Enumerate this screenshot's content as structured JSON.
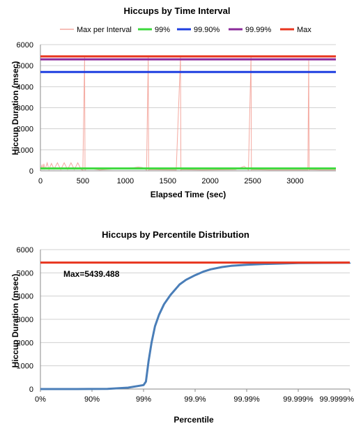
{
  "chart_data": [
    {
      "type": "line",
      "title": "Hiccups by Time Interval",
      "xlabel": "Elapsed Time (sec)",
      "ylabel": "Hiccup Duration (msec)",
      "xlim": [
        0,
        3480
      ],
      "ylim": [
        0,
        6000
      ],
      "xticks": [
        0,
        500,
        1000,
        1500,
        2000,
        2500,
        3000
      ],
      "yticks": [
        0,
        1000,
        2000,
        3000,
        4000,
        5000,
        6000
      ],
      "grid": "horizontal",
      "legend_position": "top",
      "legend": [
        "Max per Interval",
        "99%",
        "99.90%",
        "99.99%",
        "Max"
      ],
      "series": [
        {
          "name": "Max per Interval",
          "color": "#f4a9a0",
          "x": [
            0,
            20,
            30,
            40,
            50,
            60,
            80,
            100,
            130,
            160,
            200,
            240,
            280,
            320,
            360,
            400,
            440,
            480,
            500,
            520,
            525,
            530,
            560,
            700,
            1100,
            1150,
            1200,
            1250,
            1270,
            1275,
            1280,
            1400,
            1600,
            1650,
            1655,
            1660,
            1900,
            2300,
            2400,
            2450,
            2480,
            2485,
            2490,
            2700,
            3000,
            3150,
            3160,
            3165,
            3170,
            3300,
            3480
          ],
          "y": [
            50,
            280,
            60,
            330,
            80,
            130,
            380,
            60,
            350,
            80,
            380,
            60,
            380,
            60,
            380,
            60,
            380,
            60,
            40,
            5400,
            40,
            60,
            120,
            40,
            150,
            180,
            160,
            40,
            5400,
            40,
            60,
            50,
            40,
            5400,
            40,
            60,
            40,
            60,
            220,
            40,
            5400,
            40,
            60,
            40,
            40,
            40,
            5250,
            40,
            60,
            40,
            40
          ]
        },
        {
          "name": "99%",
          "color": "#3dd93d",
          "constant": 110
        },
        {
          "name": "99.90%",
          "color": "#1f3fe0",
          "constant": 4700
        },
        {
          "name": "99.99%",
          "color": "#8a2a9a",
          "constant": 5300
        },
        {
          "name": "Max",
          "color": "#e8351e",
          "constant": 5439.488
        }
      ]
    },
    {
      "type": "line",
      "title": "Hiccups by Percentile Distribution",
      "xlabel": "Percentile",
      "ylabel": "Hiccup Duration (msec)",
      "x_scale": "log_reciprocal",
      "xlim": [
        0,
        99.999999
      ],
      "ylim": [
        0,
        6000
      ],
      "xticks": [
        "0%",
        "90%",
        "99%",
        "99.9%",
        "99.99%",
        "99.999%",
        "99.9999%"
      ],
      "yticks": [
        0,
        1000,
        2000,
        3000,
        4000,
        5000,
        6000
      ],
      "grid": "horizontal",
      "annotation": "Max=5439.488",
      "series": [
        {
          "color": "#4a7eb8",
          "x_percentile": [
            0,
            80,
            95,
            98,
            99,
            99.1,
            99.2,
            99.3,
            99.4,
            99.5,
            99.6,
            99.7,
            99.8,
            99.85,
            99.9,
            99.93,
            99.95,
            99.97,
            99.98,
            99.99,
            99.995,
            99.999,
            99.9999,
            99.99999
          ],
          "y": [
            0,
            0,
            5,
            60,
            170,
            320,
            1200,
            2000,
            2700,
            3200,
            3650,
            4050,
            4500,
            4700,
            4900,
            5050,
            5150,
            5250,
            5300,
            5350,
            5380,
            5420,
            5435,
            5439
          ]
        },
        {
          "name": "Max",
          "color": "#e8351e",
          "constant": 5439.488
        }
      ]
    }
  ]
}
